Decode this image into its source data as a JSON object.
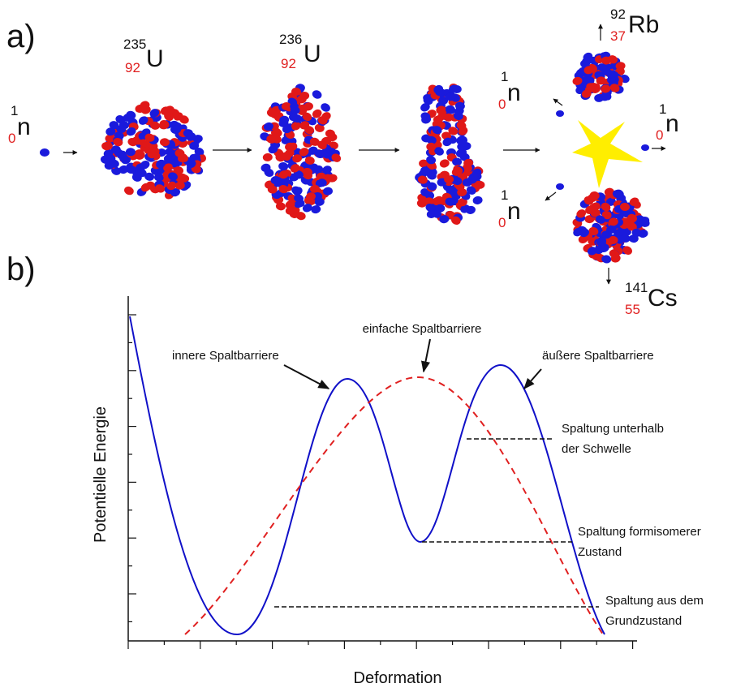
{
  "panel_a": {
    "label": "a)",
    "neutron_in": {
      "mass": "1",
      "charge": "0",
      "symbol": "n"
    },
    "u235": {
      "mass": "235",
      "charge": "92",
      "symbol": "U"
    },
    "u236": {
      "mass": "236",
      "charge": "92",
      "symbol": "U"
    },
    "rb": {
      "mass": "92",
      "charge": "37",
      "symbol": "Rb"
    },
    "cs": {
      "mass": "141",
      "charge": "55",
      "symbol": "Cs"
    },
    "neutrons_out": [
      {
        "mass": "1",
        "charge": "0",
        "symbol": "n"
      },
      {
        "mass": "1",
        "charge": "0",
        "symbol": "n"
      },
      {
        "mass": "1",
        "charge": "0",
        "symbol": "n"
      }
    ]
  },
  "panel_b": {
    "label": "b)",
    "y_label": "Potentielle Energie",
    "x_label": "Deformation",
    "annotations": [
      {
        "lines": [
          "innere Spaltbarriere"
        ]
      },
      {
        "lines": [
          "einfache Spaltbarriere"
        ]
      },
      {
        "lines": [
          "äußere Spaltbarriere"
        ]
      },
      {
        "lines": [
          "Spaltung unterhalb",
          "der Schwelle"
        ]
      },
      {
        "lines": [
          "Spaltung formisomerer",
          "Zustand"
        ]
      },
      {
        "lines": [
          "Spaltung aus dem",
          "Grundzustand"
        ]
      }
    ]
  }
}
